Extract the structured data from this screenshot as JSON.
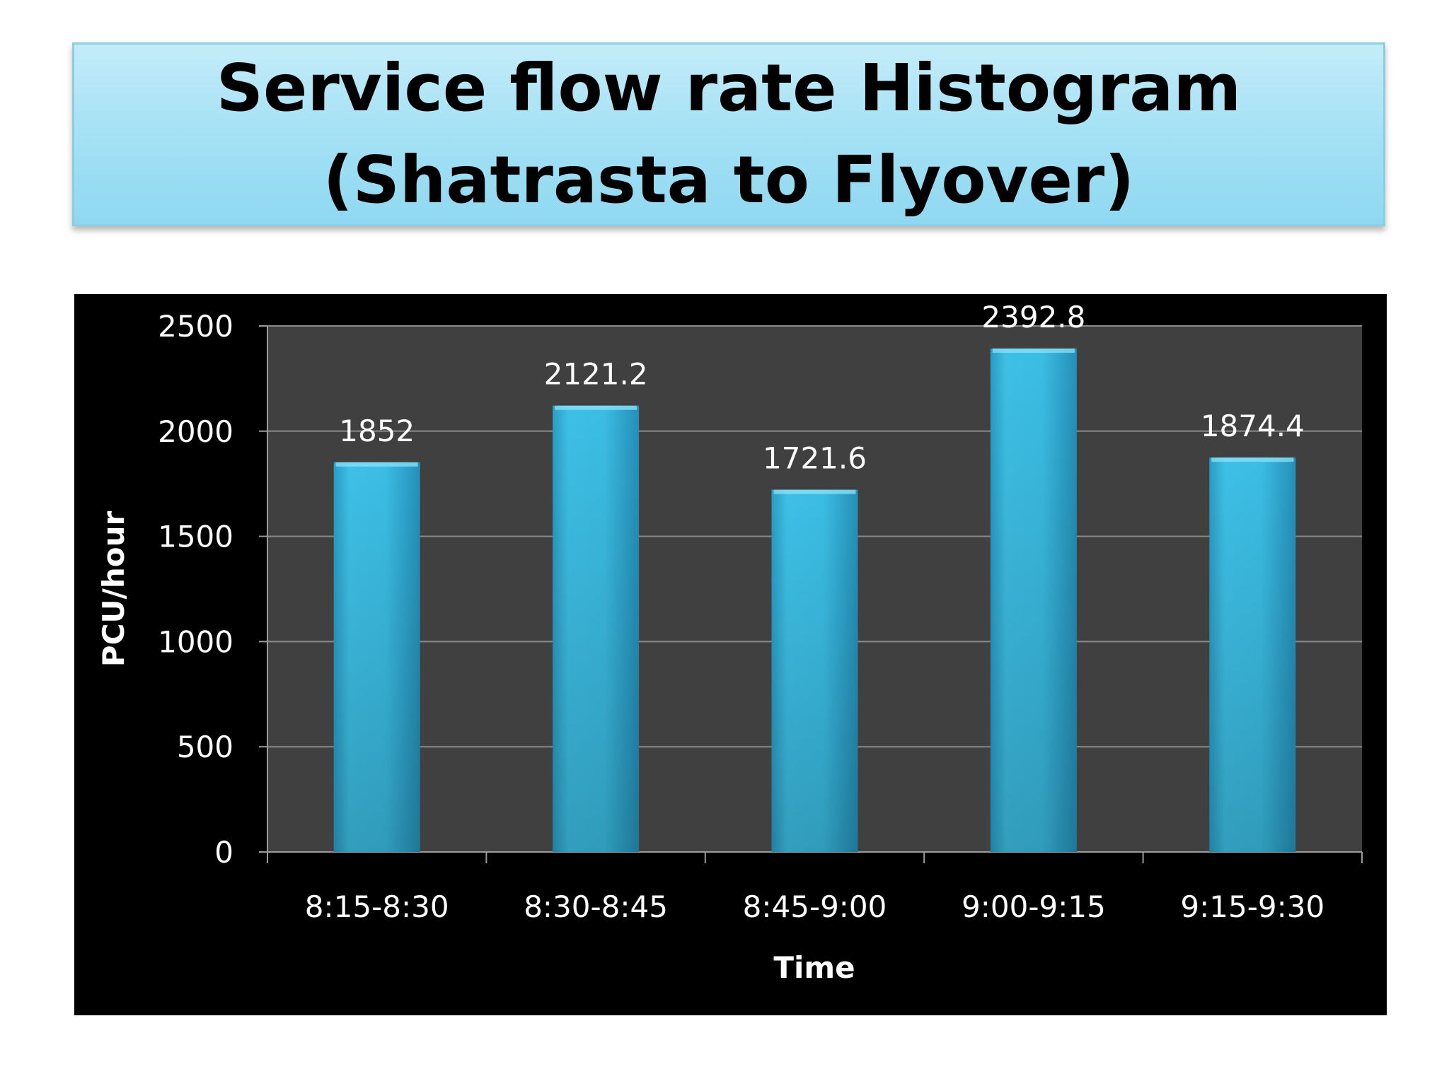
{
  "slide": {
    "title_line1": "Service flow rate Histogram",
    "title_line2": "(Shatrasta to Flyover)"
  },
  "chart_data": {
    "type": "bar",
    "categories": [
      "8:15-8:30",
      "8:30-8:45",
      "8:45-9:00",
      "9:00-9:15",
      "9:15-9:30"
    ],
    "values": [
      1852,
      2121.2,
      1721.6,
      2392.8,
      1874.4
    ],
    "data_labels": [
      "1852",
      "2121.2",
      "1721.6",
      "2392.8",
      "1874.4"
    ],
    "xlabel": "Time",
    "ylabel": "PCU/hour",
    "ylim": [
      0,
      2500
    ],
    "yticks": [
      0,
      500,
      1000,
      1500,
      2000,
      2500
    ],
    "grid": true,
    "legend": "none",
    "colors": {
      "bar": "#3bbde4",
      "plot_background": "#404040",
      "chart_background": "#000000",
      "gridline": "#8a8a8a",
      "text": "#ffffff"
    }
  }
}
